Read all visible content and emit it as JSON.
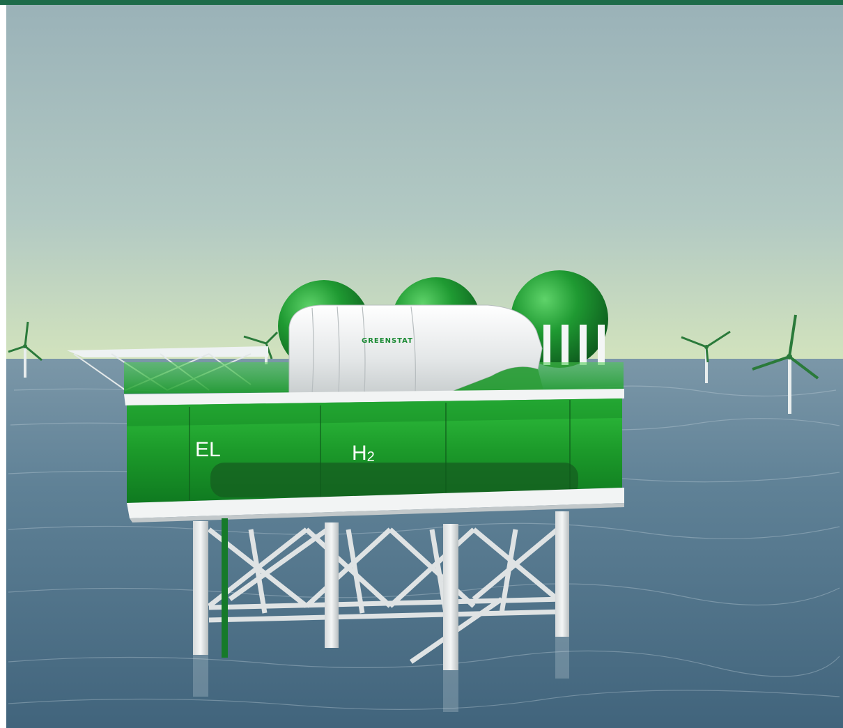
{
  "top_bar": {
    "color": "#1d6b4a"
  },
  "colors": {
    "sky_top": "#9bb3b9",
    "sky_horizon": "#c9ddc0",
    "sea": "#5b7e94",
    "green_glass": "#1ea52e",
    "sphere_green": "#1f9631",
    "structure_white": "#eef0f0"
  },
  "platform": {
    "brand_label": "GREENSTAT",
    "label_el": "EL",
    "label_h2_main": "H",
    "label_h2_sub": "2"
  }
}
